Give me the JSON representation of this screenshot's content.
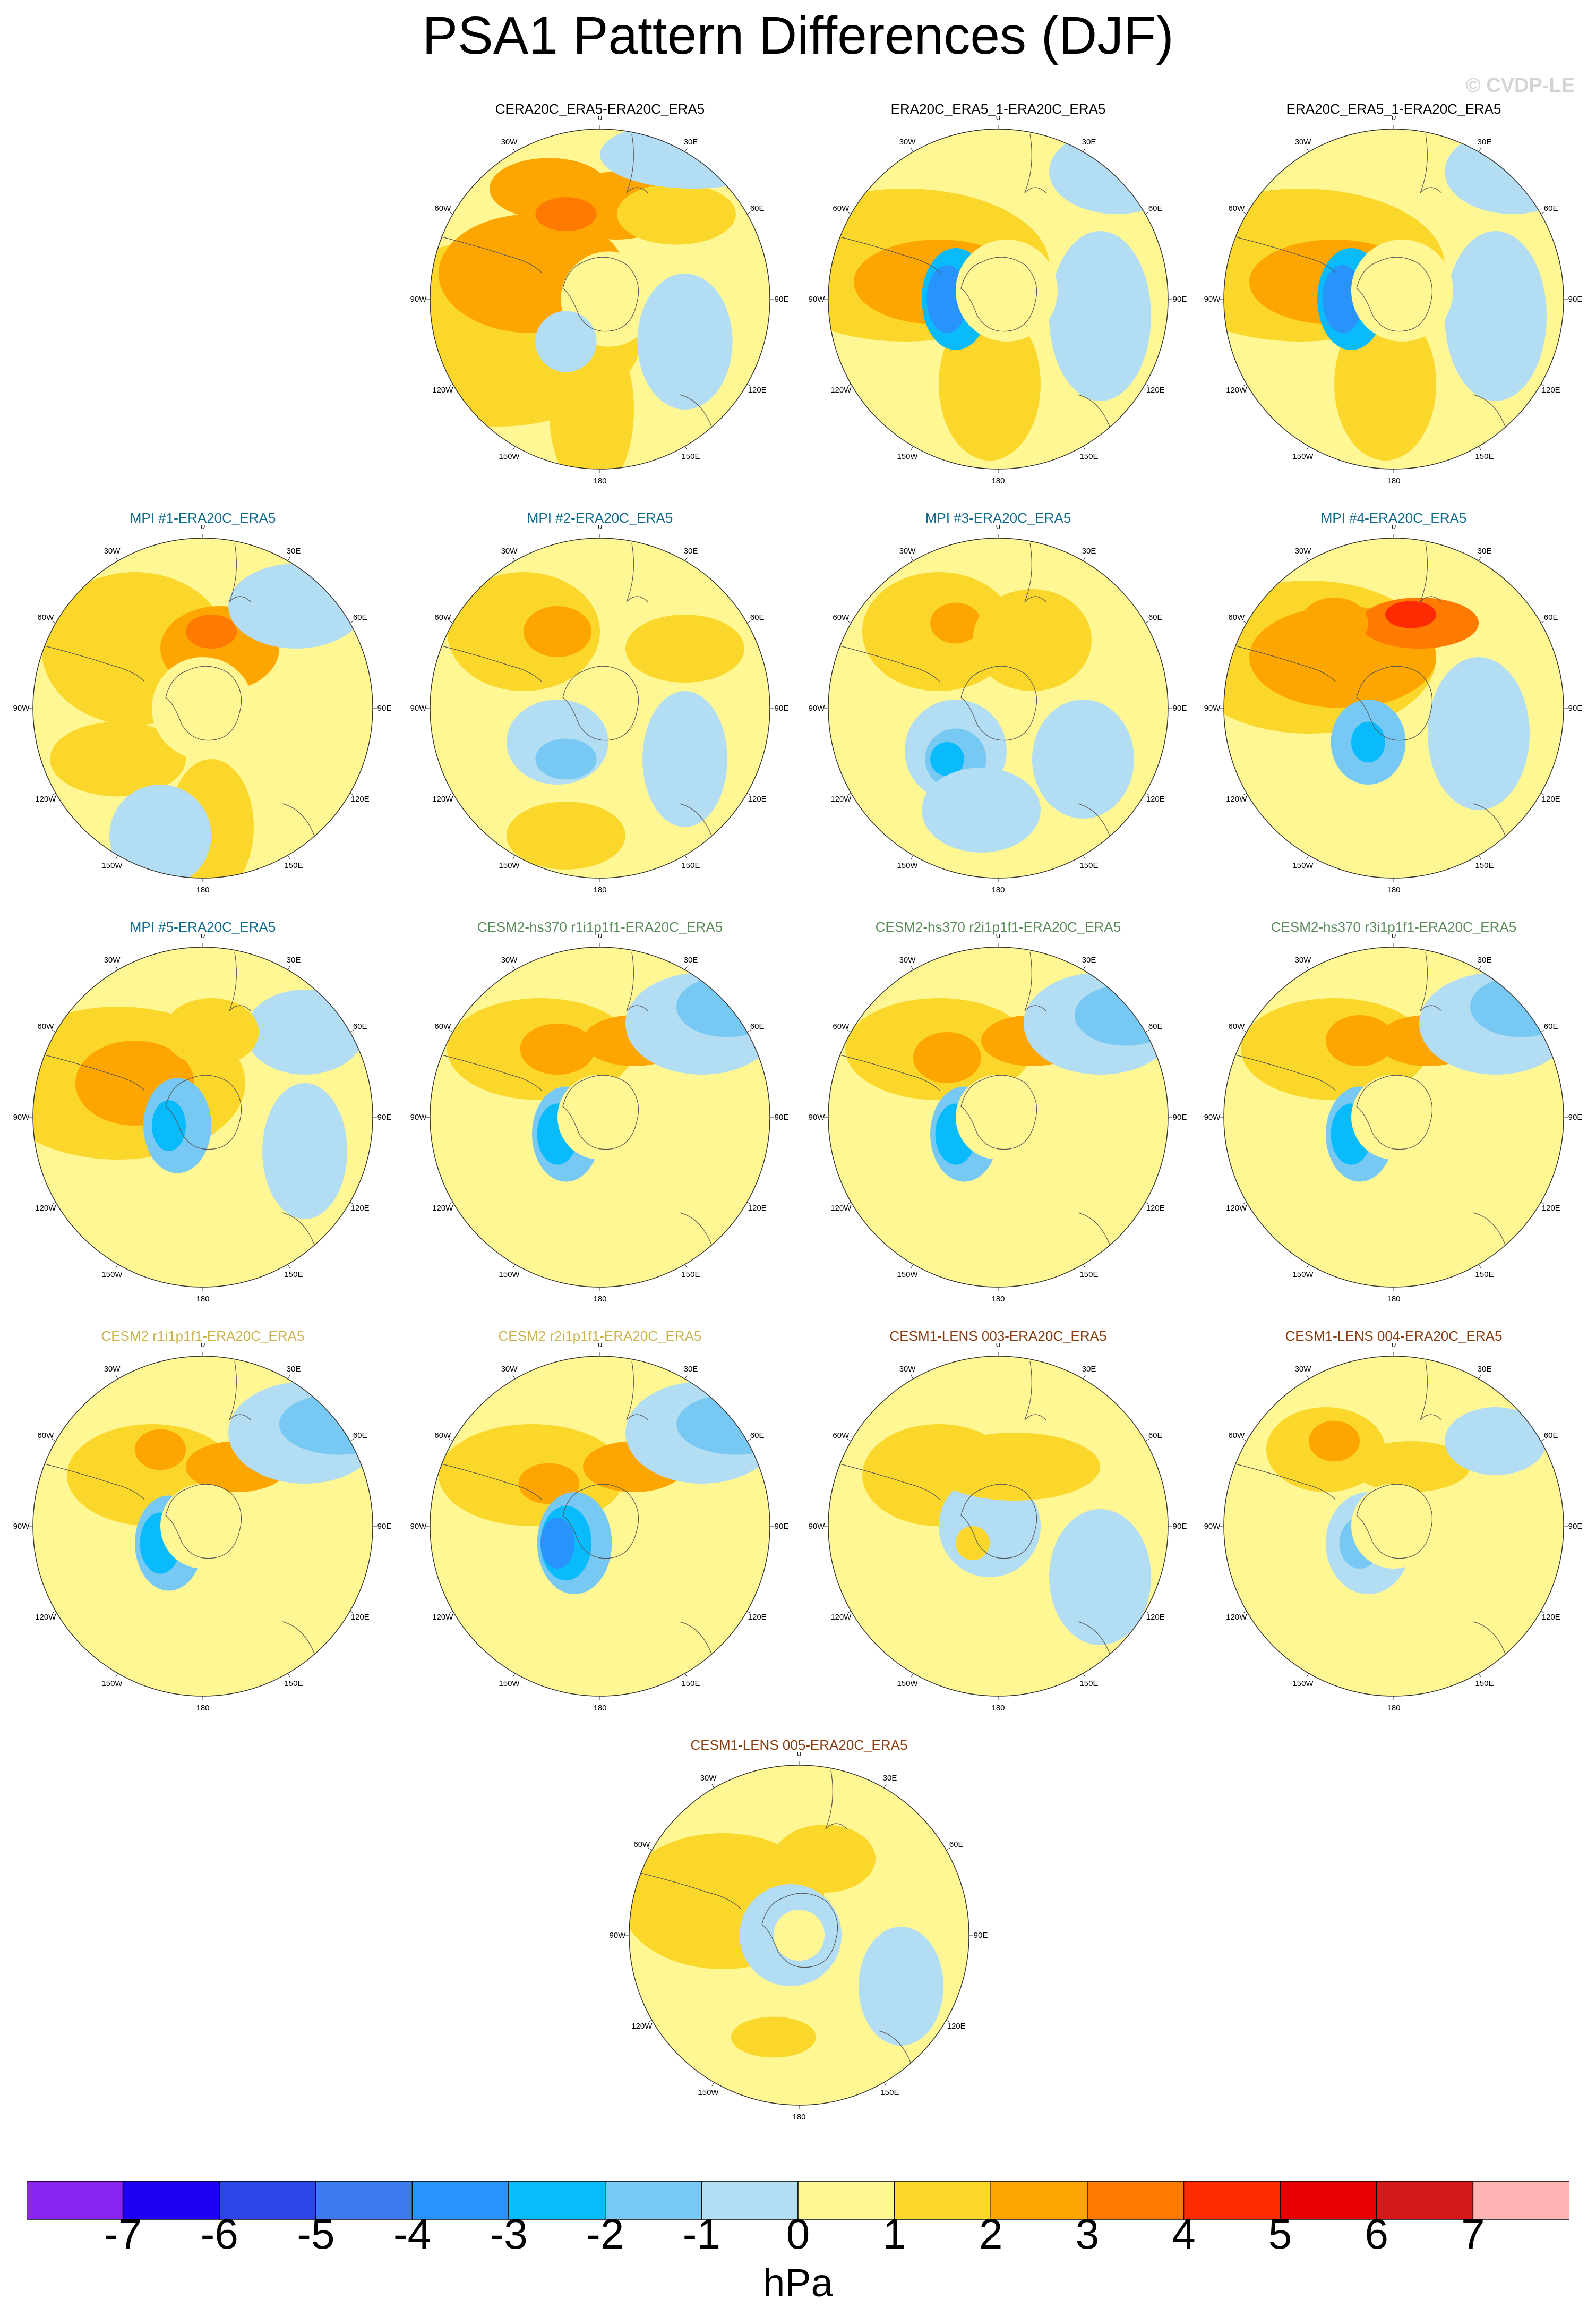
{
  "title": "PSA1 Pattern Differences (DJF)",
  "watermark": "© CVDP-LE",
  "colors": {
    "title_black": "#000000",
    "title_mpi": "#0d6a8c",
    "title_cesm2hs": "#5a8a5a",
    "title_cesm2": "#c9b24a",
    "title_cesm1": "#8b3a0e"
  },
  "longitude_labels": [
    "0",
    "30E",
    "60E",
    "90E",
    "120E",
    "150E",
    "180",
    "150W",
    "120W",
    "90W",
    "60W",
    "30W"
  ],
  "panels": [
    {
      "title": "CERA20C_ERA5-ERA20C_ERA5",
      "color": "title_black",
      "blobs": [
        [
          0,
          -0.6,
          -0.2,
          0.85,
          0.55,
          2
        ],
        [
          0,
          -0.4,
          0.15,
          0.55,
          0.35,
          3
        ],
        [
          0,
          0.1,
          0.55,
          0.35,
          0.2,
          3
        ],
        [
          0,
          0.45,
          0.5,
          0.35,
          0.18,
          2
        ],
        [
          0,
          -0.05,
          -0.65,
          0.25,
          0.5,
          2
        ],
        [
          0,
          0.05,
          0.0,
          0.28,
          0.28,
          1
        ],
        [
          0,
          -0.2,
          -0.25,
          0.18,
          0.18,
          -1
        ],
        [
          0,
          0.5,
          -0.25,
          0.28,
          0.4,
          -1
        ],
        [
          0,
          0.55,
          0.85,
          0.55,
          0.2,
          -1
        ],
        [
          0,
          -0.3,
          0.65,
          0.35,
          0.18,
          3
        ],
        [
          0,
          -0.2,
          0.5,
          0.18,
          0.1,
          4
        ]
      ]
    },
    {
      "title": "ERA20C_ERA5_1-ERA20C_ERA5",
      "color": "title_black",
      "blobs": [
        [
          0,
          -0.55,
          0.2,
          0.85,
          0.45,
          2
        ],
        [
          0,
          -0.35,
          0.1,
          0.5,
          0.25,
          3
        ],
        [
          0,
          -0.05,
          -0.5,
          0.3,
          0.45,
          2
        ],
        [
          0,
          -0.25,
          0.0,
          0.2,
          0.3,
          -3
        ],
        [
          0,
          -0.3,
          0.0,
          0.12,
          0.2,
          -4
        ],
        [
          0,
          0.6,
          -0.1,
          0.3,
          0.5,
          -1
        ],
        [
          0,
          0.7,
          0.75,
          0.4,
          0.25,
          -1
        ],
        [
          0,
          0.05,
          0.05,
          0.3,
          0.3,
          1
        ]
      ]
    },
    {
      "title": "ERA20C_ERA5_1-ERA20C_ERA5",
      "color": "title_black",
      "blobs": [
        [
          0,
          -0.55,
          0.2,
          0.85,
          0.45,
          2
        ],
        [
          0,
          -0.35,
          0.1,
          0.5,
          0.25,
          3
        ],
        [
          0,
          -0.05,
          -0.5,
          0.3,
          0.45,
          2
        ],
        [
          0,
          -0.25,
          0.0,
          0.2,
          0.3,
          -3
        ],
        [
          0,
          -0.3,
          0.0,
          0.12,
          0.2,
          -4
        ],
        [
          0,
          0.6,
          -0.1,
          0.3,
          0.5,
          -1
        ],
        [
          0,
          0.7,
          0.75,
          0.4,
          0.25,
          -1
        ],
        [
          0,
          0.05,
          0.05,
          0.3,
          0.3,
          1
        ]
      ]
    },
    {
      "title": "MPI #1-ERA20C_ERA5",
      "color": "title_mpi",
      "blobs": [
        [
          0,
          -0.4,
          0.35,
          0.55,
          0.45,
          2
        ],
        [
          0,
          0.1,
          0.35,
          0.35,
          0.25,
          3
        ],
        [
          0,
          0.05,
          0.45,
          0.15,
          0.1,
          4
        ],
        [
          0,
          -0.5,
          -0.3,
          0.4,
          0.22,
          2
        ],
        [
          0,
          0.05,
          -0.7,
          0.25,
          0.4,
          2
        ],
        [
          0,
          0.0,
          0.0,
          0.3,
          0.3,
          1
        ],
        [
          0,
          -0.25,
          -0.75,
          0.3,
          0.3,
          -1
        ],
        [
          0,
          0.55,
          0.6,
          0.4,
          0.25,
          -1
        ]
      ]
    },
    {
      "title": "MPI #2-ERA20C_ERA5",
      "color": "title_mpi",
      "blobs": [
        [
          0,
          -0.45,
          0.45,
          0.45,
          0.35,
          2
        ],
        [
          0,
          -0.25,
          0.45,
          0.2,
          0.15,
          3
        ],
        [
          0,
          -0.25,
          -0.2,
          0.3,
          0.25,
          -1
        ],
        [
          0,
          -0.2,
          -0.3,
          0.18,
          0.12,
          -2
        ],
        [
          0,
          0.5,
          0.35,
          0.35,
          0.2,
          2
        ],
        [
          0,
          -0.2,
          -0.75,
          0.35,
          0.2,
          2
        ],
        [
          0,
          0.5,
          -0.3,
          0.25,
          0.4,
          -1
        ]
      ]
    },
    {
      "title": "MPI #3-ERA20C_ERA5",
      "color": "title_mpi",
      "blobs": [
        [
          0,
          -0.35,
          0.45,
          0.45,
          0.35,
          2
        ],
        [
          0,
          -0.25,
          0.5,
          0.15,
          0.12,
          3
        ],
        [
          0,
          -0.25,
          -0.25,
          0.3,
          0.3,
          -1
        ],
        [
          0,
          -0.25,
          -0.3,
          0.18,
          0.18,
          -2
        ],
        [
          0,
          -0.3,
          -0.3,
          0.1,
          0.1,
          -3
        ],
        [
          0,
          0.2,
          0.4,
          0.35,
          0.3,
          2
        ],
        [
          0,
          -0.1,
          -0.6,
          0.35,
          0.25,
          -1
        ],
        [
          0,
          0.5,
          -0.3,
          0.3,
          0.35,
          -1
        ]
      ]
    },
    {
      "title": "MPI #4-ERA20C_ERA5",
      "color": "title_mpi",
      "blobs": [
        [
          0,
          -0.5,
          0.3,
          0.75,
          0.45,
          2
        ],
        [
          0,
          -0.3,
          0.3,
          0.55,
          0.3,
          3
        ],
        [
          0,
          0.15,
          0.5,
          0.35,
          0.15,
          4
        ],
        [
          0,
          0.1,
          0.55,
          0.15,
          0.08,
          5
        ],
        [
          0,
          -0.15,
          -0.2,
          0.22,
          0.25,
          -2
        ],
        [
          0,
          -0.15,
          -0.2,
          0.1,
          0.12,
          -3
        ],
        [
          0,
          0.5,
          -0.15,
          0.3,
          0.45,
          -1
        ],
        [
          0,
          -0.35,
          0.5,
          0.2,
          0.15,
          3
        ]
      ]
    },
    {
      "title": "MPI #5-ERA20C_ERA5",
      "color": "title_mpi",
      "blobs": [
        [
          0,
          -0.5,
          0.2,
          0.75,
          0.45,
          2
        ],
        [
          0,
          -0.4,
          0.2,
          0.35,
          0.25,
          3
        ],
        [
          0,
          -0.15,
          -0.05,
          0.2,
          0.28,
          -2
        ],
        [
          0,
          -0.2,
          -0.05,
          0.1,
          0.15,
          -3
        ],
        [
          0,
          0.6,
          0.5,
          0.35,
          0.25,
          -1
        ],
        [
          0,
          0.05,
          0.5,
          0.28,
          0.2,
          2
        ],
        [
          0,
          0.6,
          -0.2,
          0.25,
          0.4,
          -1
        ]
      ]
    },
    {
      "title": "CESM2-hs370 r1i1p1f1-ERA20C_ERA5",
      "color": "title_cesm2hs",
      "blobs": [
        [
          0,
          -0.35,
          0.4,
          0.55,
          0.3,
          2
        ],
        [
          0,
          -0.25,
          0.4,
          0.22,
          0.15,
          3
        ],
        [
          0,
          -0.2,
          -0.1,
          0.2,
          0.28,
          -2
        ],
        [
          0,
          -0.25,
          -0.1,
          0.12,
          0.18,
          -3
        ],
        [
          0,
          0.2,
          0.45,
          0.3,
          0.15,
          3
        ],
        [
          0,
          0.6,
          0.55,
          0.45,
          0.3,
          -1
        ],
        [
          0,
          0.75,
          0.65,
          0.3,
          0.18,
          -2
        ],
        [
          0,
          0.0,
          0.0,
          0.25,
          0.25,
          1
        ]
      ]
    },
    {
      "title": "CESM2-hs370 r2i1p1f1-ERA20C_ERA5",
      "color": "title_cesm2hs",
      "blobs": [
        [
          0,
          -0.35,
          0.4,
          0.55,
          0.3,
          2
        ],
        [
          0,
          -0.3,
          0.35,
          0.2,
          0.15,
          3
        ],
        [
          0,
          -0.2,
          -0.1,
          0.2,
          0.28,
          -2
        ],
        [
          0,
          -0.25,
          -0.1,
          0.12,
          0.18,
          -3
        ],
        [
          0,
          0.2,
          0.45,
          0.3,
          0.15,
          3
        ],
        [
          0,
          0.6,
          0.55,
          0.45,
          0.3,
          -1
        ],
        [
          0,
          0.75,
          0.6,
          0.3,
          0.18,
          -2
        ],
        [
          0,
          0.0,
          0.0,
          0.25,
          0.25,
          1
        ]
      ]
    },
    {
      "title": "CESM2-hs370 r3i1p1f1-ERA20C_ERA5",
      "color": "title_cesm2hs",
      "blobs": [
        [
          0,
          -0.35,
          0.4,
          0.55,
          0.3,
          2
        ],
        [
          0,
          -0.2,
          0.45,
          0.2,
          0.15,
          3
        ],
        [
          0,
          -0.2,
          -0.1,
          0.2,
          0.28,
          -2
        ],
        [
          0,
          -0.25,
          -0.1,
          0.12,
          0.18,
          -3
        ],
        [
          0,
          0.2,
          0.45,
          0.3,
          0.15,
          3
        ],
        [
          0,
          0.6,
          0.55,
          0.45,
          0.3,
          -1
        ],
        [
          0,
          0.75,
          0.65,
          0.3,
          0.18,
          -2
        ],
        [
          0,
          0.0,
          0.0,
          0.25,
          0.25,
          1
        ]
      ]
    },
    {
      "title": "CESM2 r1i1p1f1-ERA20C_ERA5",
      "color": "title_cesm2",
      "blobs": [
        [
          0,
          -0.3,
          0.3,
          0.5,
          0.3,
          2
        ],
        [
          0,
          -0.25,
          0.45,
          0.15,
          0.12,
          3
        ],
        [
          0,
          -0.2,
          -0.1,
          0.2,
          0.28,
          -2
        ],
        [
          0,
          -0.25,
          -0.1,
          0.12,
          0.18,
          -3
        ],
        [
          0,
          0.2,
          0.35,
          0.3,
          0.15,
          3
        ],
        [
          0,
          0.6,
          0.55,
          0.45,
          0.3,
          -1
        ],
        [
          0,
          0.8,
          0.6,
          0.35,
          0.18,
          -2
        ],
        [
          0,
          0.0,
          0.0,
          0.25,
          0.25,
          1
        ]
      ]
    },
    {
      "title": "CESM2 r2i1p1f1-ERA20C_ERA5",
      "color": "title_cesm2",
      "blobs": [
        [
          0,
          -0.4,
          0.3,
          0.55,
          0.3,
          2
        ],
        [
          0,
          -0.3,
          0.25,
          0.18,
          0.12,
          3
        ],
        [
          0,
          -0.15,
          -0.1,
          0.22,
          0.3,
          -2
        ],
        [
          0,
          -0.2,
          -0.1,
          0.15,
          0.22,
          -3
        ],
        [
          0,
          -0.25,
          -0.1,
          0.1,
          0.15,
          -4
        ],
        [
          0,
          0.2,
          0.35,
          0.3,
          0.15,
          3
        ],
        [
          0,
          0.6,
          0.55,
          0.45,
          0.3,
          -1
        ],
        [
          0,
          0.8,
          0.6,
          0.35,
          0.18,
          -2
        ]
      ]
    },
    {
      "title": "CESM1-LENS 003-ERA20C_ERA5",
      "color": "title_cesm1",
      "blobs": [
        [
          0,
          -0.35,
          0.3,
          0.45,
          0.3,
          2
        ],
        [
          0,
          -0.05,
          0.0,
          0.3,
          0.3,
          -1
        ],
        [
          0,
          0.1,
          0.35,
          0.5,
          0.2,
          2
        ],
        [
          0,
          -0.05,
          -0.6,
          0.35,
          0.15,
          1
        ],
        [
          0,
          0.6,
          -0.3,
          0.3,
          0.4,
          -1
        ],
        [
          0,
          -0.15,
          -0.1,
          0.1,
          0.1,
          2
        ]
      ]
    },
    {
      "title": "CESM1-LENS 004-ERA20C_ERA5",
      "color": "title_cesm1",
      "blobs": [
        [
          0,
          -0.4,
          0.45,
          0.35,
          0.25,
          2
        ],
        [
          0,
          -0.35,
          0.5,
          0.15,
          0.12,
          3
        ],
        [
          0,
          -0.15,
          -0.1,
          0.25,
          0.3,
          -1
        ],
        [
          0,
          -0.2,
          -0.1,
          0.12,
          0.15,
          -2
        ],
        [
          0,
          0.1,
          0.35,
          0.35,
          0.15,
          2
        ],
        [
          0,
          0.6,
          0.5,
          0.3,
          0.2,
          -1
        ],
        [
          0,
          0.0,
          0.0,
          0.25,
          0.25,
          1
        ]
      ]
    },
    {
      "title": "CESM1-LENS 005-ERA20C_ERA5",
      "color": "title_cesm1",
      "blobs": [
        [
          0,
          -0.45,
          0.2,
          0.6,
          0.4,
          2
        ],
        [
          0,
          0.15,
          0.45,
          0.3,
          0.2,
          2
        ],
        [
          0,
          -0.05,
          0.0,
          0.3,
          0.3,
          -1
        ],
        [
          0,
          -0.15,
          -0.6,
          0.25,
          0.12,
          2
        ],
        [
          0,
          0.6,
          -0.3,
          0.25,
          0.35,
          -1
        ],
        [
          0,
          0.0,
          0.0,
          0.15,
          0.15,
          1
        ]
      ]
    }
  ],
  "colorbar": {
    "colors": [
      "#8a24f0",
      "#1f00f5",
      "#2c45e8",
      "#3b7bef",
      "#2894fb",
      "#09bbfa",
      "#77c8f2",
      "#b3ddf3",
      "#fff794",
      "#fcd72b",
      "#fda601",
      "#fe7a01",
      "#fe2a01",
      "#e70002",
      "#d31919",
      "#feb4b2"
    ],
    "ticks": [
      "-7",
      "-6",
      "-5",
      "-4",
      "-3",
      "-2",
      "-1",
      "0",
      "1",
      "2",
      "3",
      "4",
      "5",
      "6",
      "7"
    ],
    "units": "hPa"
  }
}
